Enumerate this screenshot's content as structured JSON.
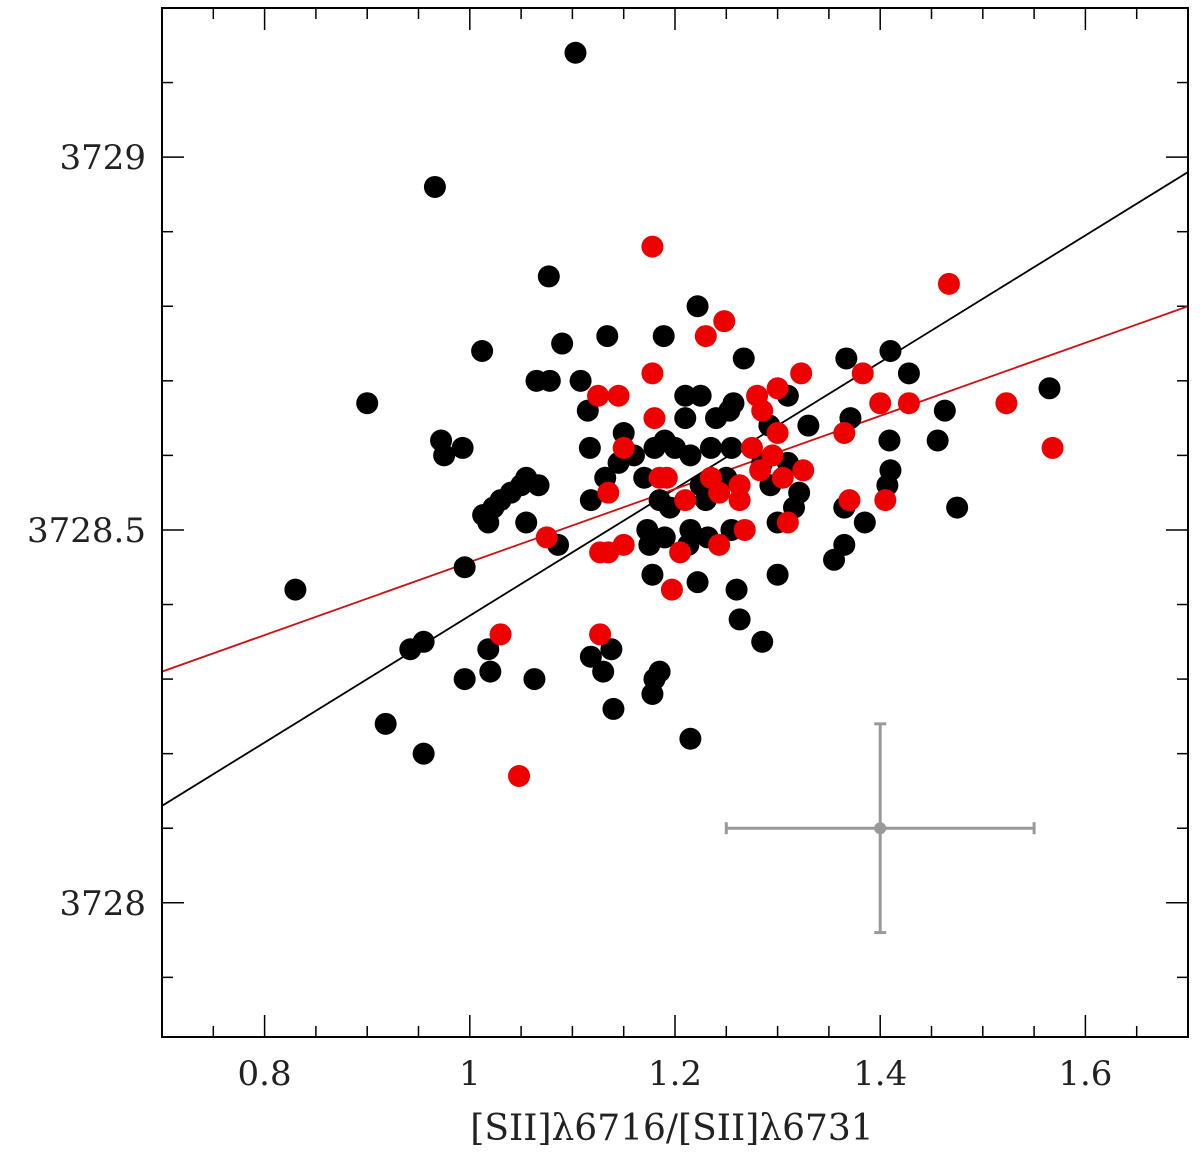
{
  "chart_data": {
    "type": "scatter",
    "title": "",
    "xlabel": "[SII]λ6716/[SII]λ6731",
    "ylabel": "",
    "xlim": [
      0.7,
      1.7
    ],
    "ylim": [
      3727.82,
      3729.2
    ],
    "x_ticks": [
      0.8,
      1.0,
      1.2,
      1.4,
      1.6
    ],
    "x_tick_labels": [
      "0.8",
      "1",
      "1.2",
      "1.4",
      "1.6"
    ],
    "y_ticks": [
      3728.0,
      3728.5,
      3729.0
    ],
    "y_tick_labels": [
      "3728",
      "3728.5",
      "3729"
    ],
    "x_minor_step": 0.05,
    "y_minor_step": 0.1,
    "colors": {
      "black_series": "#000000",
      "red_series": "#ee0000",
      "error_bar": "#999999",
      "frame": "#000000"
    },
    "series": [
      {
        "name": "black",
        "color": "#000000",
        "points": [
          [
            1.103,
            3729.14
          ],
          [
            0.966,
            3728.96
          ],
          [
            1.077,
            3728.84
          ],
          [
            1.222,
            3728.8
          ],
          [
            1.012,
            3728.74
          ],
          [
            1.134,
            3728.76
          ],
          [
            1.189,
            3728.76
          ],
          [
            1.09,
            3728.75
          ],
          [
            1.267,
            3728.73
          ],
          [
            1.367,
            3728.73
          ],
          [
            1.41,
            3728.74
          ],
          [
            1.428,
            3728.71
          ],
          [
            1.078,
            3728.7
          ],
          [
            1.065,
            3728.7
          ],
          [
            1.108,
            3728.7
          ],
          [
            0.9,
            3728.67
          ],
          [
            1.21,
            3728.68
          ],
          [
            1.225,
            3728.68
          ],
          [
            1.257,
            3728.67
          ],
          [
            1.31,
            3728.68
          ],
          [
            1.565,
            3728.69
          ],
          [
            1.115,
            3728.66
          ],
          [
            1.15,
            3728.63
          ],
          [
            1.21,
            3728.65
          ],
          [
            1.24,
            3728.65
          ],
          [
            1.253,
            3728.66
          ],
          [
            1.292,
            3728.64
          ],
          [
            1.33,
            3728.64
          ],
          [
            1.371,
            3728.65
          ],
          [
            1.463,
            3728.66
          ],
          [
            0.972,
            3728.62
          ],
          [
            0.993,
            3728.61
          ],
          [
            0.975,
            3728.6
          ],
          [
            1.117,
            3728.61
          ],
          [
            1.145,
            3728.59
          ],
          [
            1.16,
            3728.6
          ],
          [
            1.18,
            3728.61
          ],
          [
            1.19,
            3728.62
          ],
          [
            1.2,
            3728.61
          ],
          [
            1.215,
            3728.6
          ],
          [
            1.235,
            3728.61
          ],
          [
            1.255,
            3728.61
          ],
          [
            1.285,
            3728.59
          ],
          [
            1.31,
            3728.59
          ],
          [
            1.409,
            3728.62
          ],
          [
            1.456,
            3728.62
          ],
          [
            1.055,
            3728.57
          ],
          [
            1.067,
            3728.56
          ],
          [
            1.132,
            3728.57
          ],
          [
            1.17,
            3728.57
          ],
          [
            1.225,
            3728.56
          ],
          [
            1.25,
            3728.57
          ],
          [
            1.293,
            3728.56
          ],
          [
            1.321,
            3728.55
          ],
          [
            1.41,
            3728.58
          ],
          [
            1.407,
            3728.56
          ],
          [
            1.04,
            3728.55
          ],
          [
            1.03,
            3728.54
          ],
          [
            1.05,
            3728.56
          ],
          [
            1.023,
            3728.53
          ],
          [
            1.013,
            3728.52
          ],
          [
            1.018,
            3728.51
          ],
          [
            1.118,
            3728.54
          ],
          [
            1.185,
            3728.54
          ],
          [
            1.195,
            3728.53
          ],
          [
            1.23,
            3728.54
          ],
          [
            1.316,
            3728.53
          ],
          [
            1.365,
            3728.53
          ],
          [
            1.475,
            3728.53
          ],
          [
            1.055,
            3728.51
          ],
          [
            1.173,
            3728.5
          ],
          [
            1.19,
            3728.49
          ],
          [
            1.215,
            3728.5
          ],
          [
            1.255,
            3728.5
          ],
          [
            1.3,
            3728.51
          ],
          [
            1.385,
            3728.51
          ],
          [
            1.086,
            3728.48
          ],
          [
            1.175,
            3728.48
          ],
          [
            1.213,
            3728.48
          ],
          [
            1.232,
            3728.49
          ],
          [
            1.355,
            3728.46
          ],
          [
            1.365,
            3728.48
          ],
          [
            0.995,
            3728.45
          ],
          [
            1.178,
            3728.44
          ],
          [
            1.222,
            3728.43
          ],
          [
            1.3,
            3728.44
          ],
          [
            1.26,
            3728.42
          ],
          [
            0.83,
            3728.42
          ],
          [
            1.263,
            3728.38
          ],
          [
            0.955,
            3728.35
          ],
          [
            0.942,
            3728.34
          ],
          [
            1.018,
            3728.34
          ],
          [
            1.118,
            3728.33
          ],
          [
            1.138,
            3728.34
          ],
          [
            1.13,
            3728.31
          ],
          [
            1.185,
            3728.31
          ],
          [
            1.18,
            3728.3
          ],
          [
            1.02,
            3728.31
          ],
          [
            1.063,
            3728.3
          ],
          [
            0.995,
            3728.3
          ],
          [
            1.285,
            3728.35
          ],
          [
            1.178,
            3728.28
          ],
          [
            1.14,
            3728.26
          ],
          [
            0.918,
            3728.24
          ],
          [
            1.215,
            3728.22
          ],
          [
            0.955,
            3728.2
          ]
        ]
      },
      {
        "name": "red",
        "color": "#ee0000",
        "points": [
          [
            1.178,
            3728.88
          ],
          [
            1.467,
            3728.83
          ],
          [
            1.248,
            3728.78
          ],
          [
            1.23,
            3728.76
          ],
          [
            1.178,
            3728.71
          ],
          [
            1.323,
            3728.71
          ],
          [
            1.383,
            3728.71
          ],
          [
            1.125,
            3728.68
          ],
          [
            1.145,
            3728.68
          ],
          [
            1.28,
            3728.68
          ],
          [
            1.3,
            3728.69
          ],
          [
            1.285,
            3728.66
          ],
          [
            1.4,
            3728.67
          ],
          [
            1.428,
            3728.67
          ],
          [
            1.523,
            3728.67
          ],
          [
            1.18,
            3728.65
          ],
          [
            1.3,
            3728.63
          ],
          [
            1.365,
            3728.63
          ],
          [
            1.15,
            3728.61
          ],
          [
            1.275,
            3728.61
          ],
          [
            1.295,
            3728.6
          ],
          [
            1.568,
            3728.61
          ],
          [
            1.325,
            3728.58
          ],
          [
            1.283,
            3728.58
          ],
          [
            1.263,
            3728.56
          ],
          [
            1.192,
            3728.57
          ],
          [
            1.185,
            3728.57
          ],
          [
            1.235,
            3728.57
          ],
          [
            1.305,
            3728.57
          ],
          [
            1.135,
            3728.55
          ],
          [
            1.243,
            3728.55
          ],
          [
            1.263,
            3728.54
          ],
          [
            1.21,
            3728.54
          ],
          [
            1.405,
            3728.54
          ],
          [
            1.37,
            3728.54
          ],
          [
            1.31,
            3728.51
          ],
          [
            1.268,
            3728.5
          ],
          [
            1.075,
            3728.49
          ],
          [
            1.15,
            3728.48
          ],
          [
            1.127,
            3728.47
          ],
          [
            1.135,
            3728.47
          ],
          [
            1.243,
            3728.48
          ],
          [
            1.205,
            3728.47
          ],
          [
            1.197,
            3728.42
          ],
          [
            1.03,
            3728.36
          ],
          [
            1.127,
            3728.36
          ],
          [
            1.048,
            3728.17
          ]
        ]
      }
    ],
    "fit_lines": [
      {
        "name": "black fit",
        "color": "#000000",
        "x": [
          0.7,
          1.7
        ],
        "y": [
          3728.13,
          3728.98
        ]
      },
      {
        "name": "red fit",
        "color": "#cc1111",
        "x": [
          0.7,
          1.7
        ],
        "y": [
          3728.31,
          3728.8
        ]
      }
    ],
    "error_bar": {
      "x": 1.4,
      "y": 3728.1,
      "x_err": 0.15,
      "y_err": 0.14
    }
  }
}
